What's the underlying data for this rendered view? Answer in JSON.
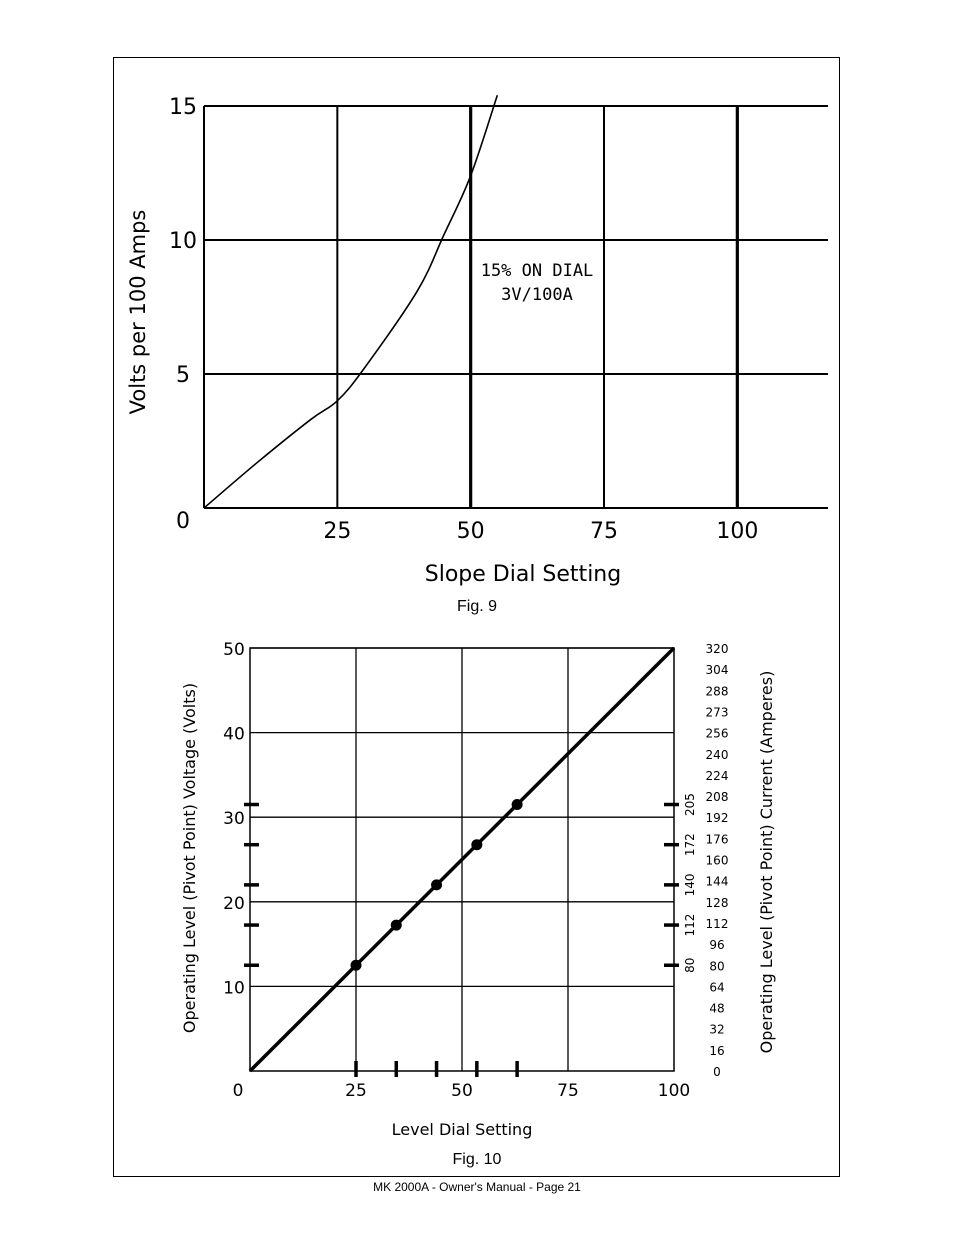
{
  "footer": "MK 2000A - Owner's Manual - Page 21",
  "chart_data": [
    {
      "type": "line",
      "figure": "Fig. 9",
      "ylabel": "Volts per 100 Amps",
      "xlabel": "Slope Dial Setting",
      "x_tick_labels": [
        "0",
        "25",
        "50",
        "75",
        "100"
      ],
      "y_tick_labels": [
        "0",
        "5",
        "10",
        "15"
      ],
      "xlim": [
        0,
        117
      ],
      "ylim": [
        0,
        15
      ],
      "grid": true,
      "annotation": [
        "15% ON DIAL",
        "3V/100A"
      ],
      "series": [
        {
          "x": [
            0,
            10,
            20,
            25,
            30,
            40,
            45,
            50,
            55
          ],
          "y": [
            0,
            1.7,
            3.3,
            4.0,
            5.2,
            8.1,
            10.2,
            12.4,
            15.4
          ]
        }
      ]
    },
    {
      "type": "line",
      "figure": "Fig. 10",
      "ylabel": "Operating Level (Pivot Point) Voltage (Volts)",
      "ylabel_right": "Operating Level (Pivot Point) Current (Amperes)",
      "xlabel": "Level Dial Setting",
      "x_tick_labels": [
        "0",
        "25",
        "50",
        "75",
        "100"
      ],
      "y_tick_labels": [
        "10",
        "20",
        "30",
        "40",
        "50"
      ],
      "y_right_tick_labels": [
        "0",
        "16",
        "32",
        "48",
        "64",
        "80",
        "96",
        "112",
        "128",
        "144",
        "160",
        "176",
        "192",
        "208",
        "224",
        "240",
        "256",
        "273",
        "288",
        "304",
        "320"
      ],
      "y_right_marker_labels": [
        "80",
        "112",
        "140",
        "172",
        "205"
      ],
      "xlim": [
        0,
        100
      ],
      "ylim": [
        0,
        50
      ],
      "grid": true,
      "series": [
        {
          "x": [
            0,
            25,
            34.5,
            44,
            53.5,
            63,
            100
          ],
          "y": [
            0,
            12.5,
            17.25,
            22,
            26.75,
            31.5,
            50
          ]
        }
      ],
      "markers": {
        "x": [
          25,
          34.5,
          44,
          53.5,
          63
        ],
        "y": [
          12.5,
          17.25,
          22,
          26.75,
          31.5
        ]
      },
      "x_marker_ticks": [
        25,
        34.5,
        44,
        53.5,
        63
      ],
      "y_marker_ticks": [
        12.5,
        17.25,
        22,
        26.75,
        31.5
      ]
    }
  ]
}
